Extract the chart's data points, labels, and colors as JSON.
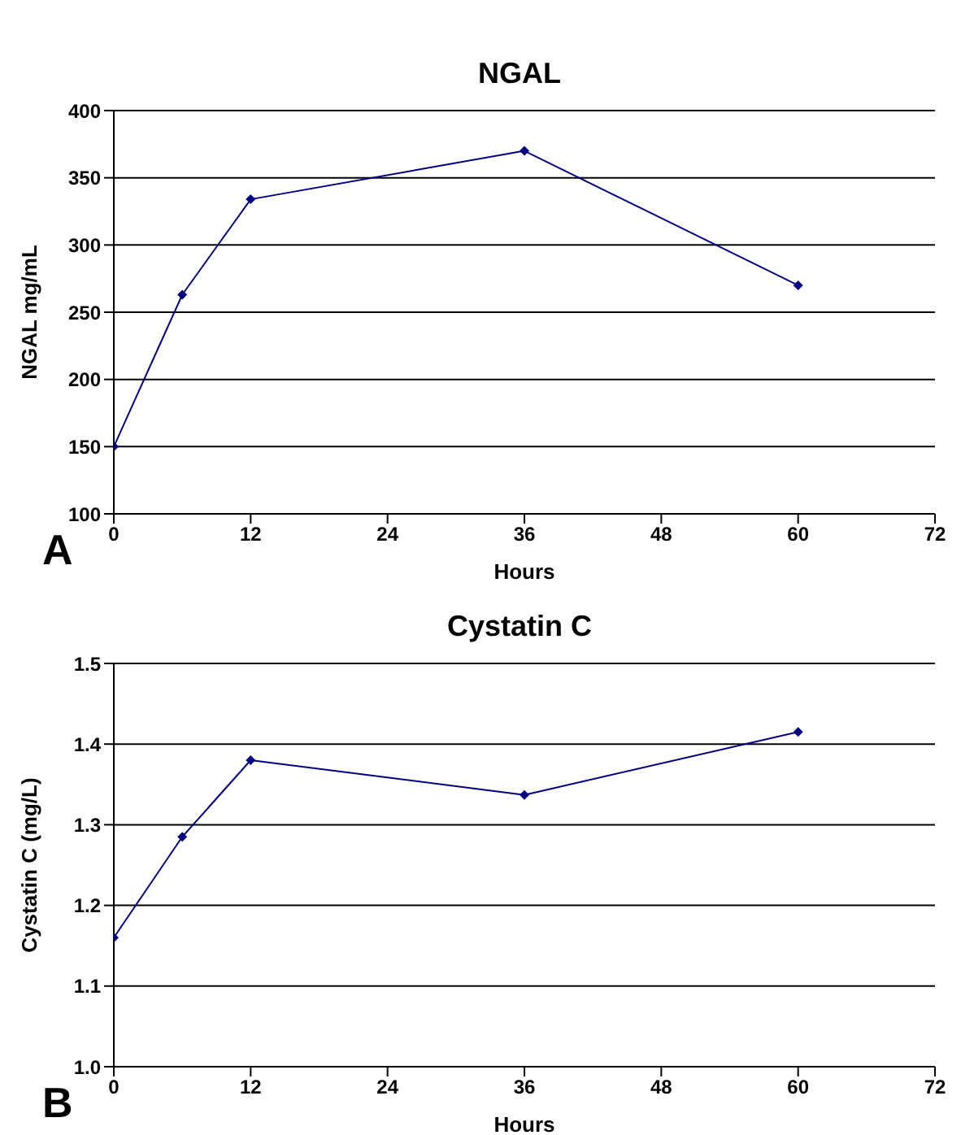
{
  "chart_data": [
    {
      "type": "line",
      "title": "NGAL",
      "xlabel": "Hours",
      "ylabel": "NGAL mg/mL",
      "annotations": [
        "A"
      ],
      "x": [
        0,
        6,
        12,
        36,
        60
      ],
      "series": [
        {
          "color": "#000080",
          "values": [
            150,
            263,
            334,
            370,
            270
          ]
        }
      ],
      "xlim": [
        0,
        72
      ],
      "xticks": [
        0,
        12,
        24,
        36,
        48,
        60,
        72
      ],
      "ylim": [
        100,
        400
      ],
      "yticks": [
        100,
        150,
        200,
        250,
        300,
        350,
        400
      ],
      "grid": "y",
      "legend": false,
      "marker": "diamond",
      "line_style": "solid"
    },
    {
      "type": "line",
      "title": "Cystatin C",
      "xlabel": "Hours",
      "ylabel": "Cystatin C (mg/L)",
      "annotations": [
        "B"
      ],
      "x": [
        0,
        6,
        12,
        36,
        60
      ],
      "series": [
        {
          "color": "#000080",
          "values": [
            1.16,
            1.285,
            1.38,
            1.337,
            1.415
          ]
        }
      ],
      "xlim": [
        0,
        72
      ],
      "xticks": [
        0,
        12,
        24,
        36,
        48,
        60,
        72
      ],
      "ylim": [
        1.0,
        1.5
      ],
      "yticks": [
        {
          "value": 1.0,
          "label": "1.0"
        },
        1.1,
        1.2,
        1.3,
        1.4,
        1.5
      ],
      "grid": "y",
      "legend": false,
      "marker": "diamond",
      "line_style": "solid"
    }
  ]
}
